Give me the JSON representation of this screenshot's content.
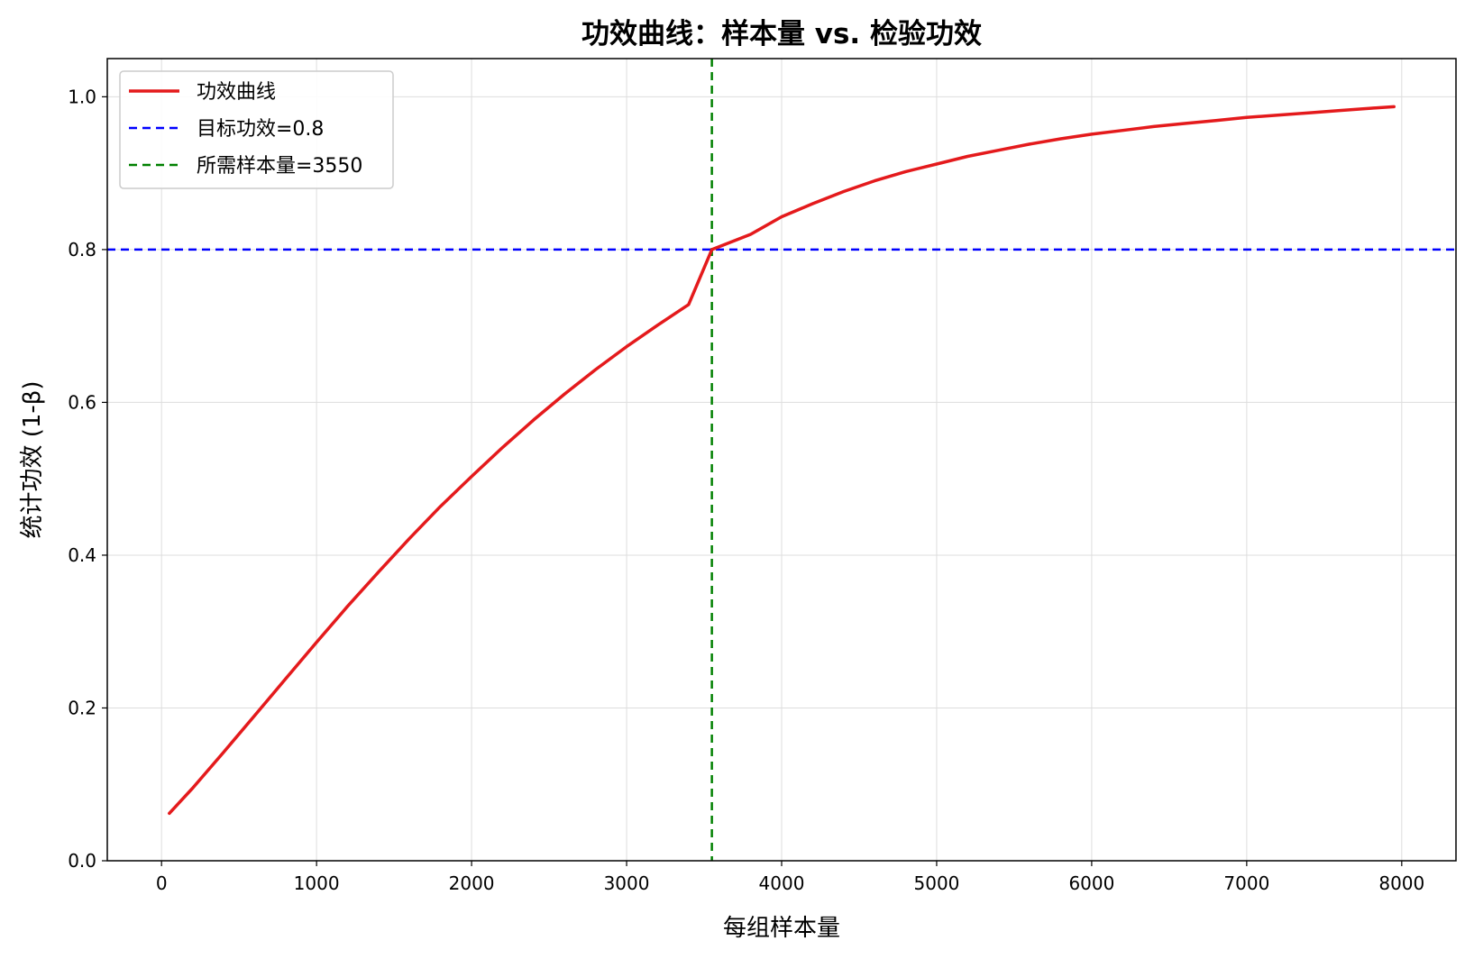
{
  "chart_data": {
    "type": "line",
    "title": "功效曲线：样本量 vs. 检验功效",
    "xlabel": "每组样本量",
    "ylabel": "统计功效 (1-β)",
    "xlim": [
      -350,
      8350
    ],
    "ylim": [
      0.0,
      1.05
    ],
    "x_ticks": [
      0,
      1000,
      2000,
      3000,
      4000,
      5000,
      6000,
      7000,
      8000
    ],
    "y_ticks": [
      0.0,
      0.2,
      0.4,
      0.6,
      0.8,
      1.0
    ],
    "grid": true,
    "legend_position": "top-left",
    "series": [
      {
        "name": "功效曲线",
        "color": "#e41a1c",
        "style": "solid",
        "x": [
          50,
          200,
          400,
          600,
          800,
          1000,
          1200,
          1400,
          1600,
          1800,
          2000,
          2200,
          2400,
          2600,
          2800,
          3000,
          3200,
          3400,
          3550,
          3800,
          4000,
          4200,
          4400,
          4600,
          4800,
          5000,
          5200,
          5400,
          5600,
          5800,
          6000,
          6200,
          6400,
          6600,
          6800,
          7000,
          7200,
          7400,
          7600,
          7800,
          7950
        ],
        "y": [
          0.062,
          0.095,
          0.142,
          0.19,
          0.238,
          0.286,
          0.333,
          0.378,
          0.422,
          0.464,
          0.503,
          0.541,
          0.577,
          0.611,
          0.643,
          0.673,
          0.701,
          0.728,
          0.8,
          0.82,
          0.843,
          0.86,
          0.876,
          0.89,
          0.902,
          0.912,
          0.922,
          0.93,
          0.938,
          0.945,
          0.951,
          0.956,
          0.961,
          0.965,
          0.969,
          0.973,
          0.976,
          0.979,
          0.982,
          0.985,
          0.987
        ]
      }
    ],
    "reference_lines": [
      {
        "name": "目标功效=0.8",
        "orientation": "horizontal",
        "value": 0.8,
        "color": "#0000ff",
        "style": "dashed"
      },
      {
        "name": "所需样本量=3550",
        "orientation": "vertical",
        "value": 3550,
        "color": "#008000",
        "style": "dashed"
      }
    ]
  }
}
